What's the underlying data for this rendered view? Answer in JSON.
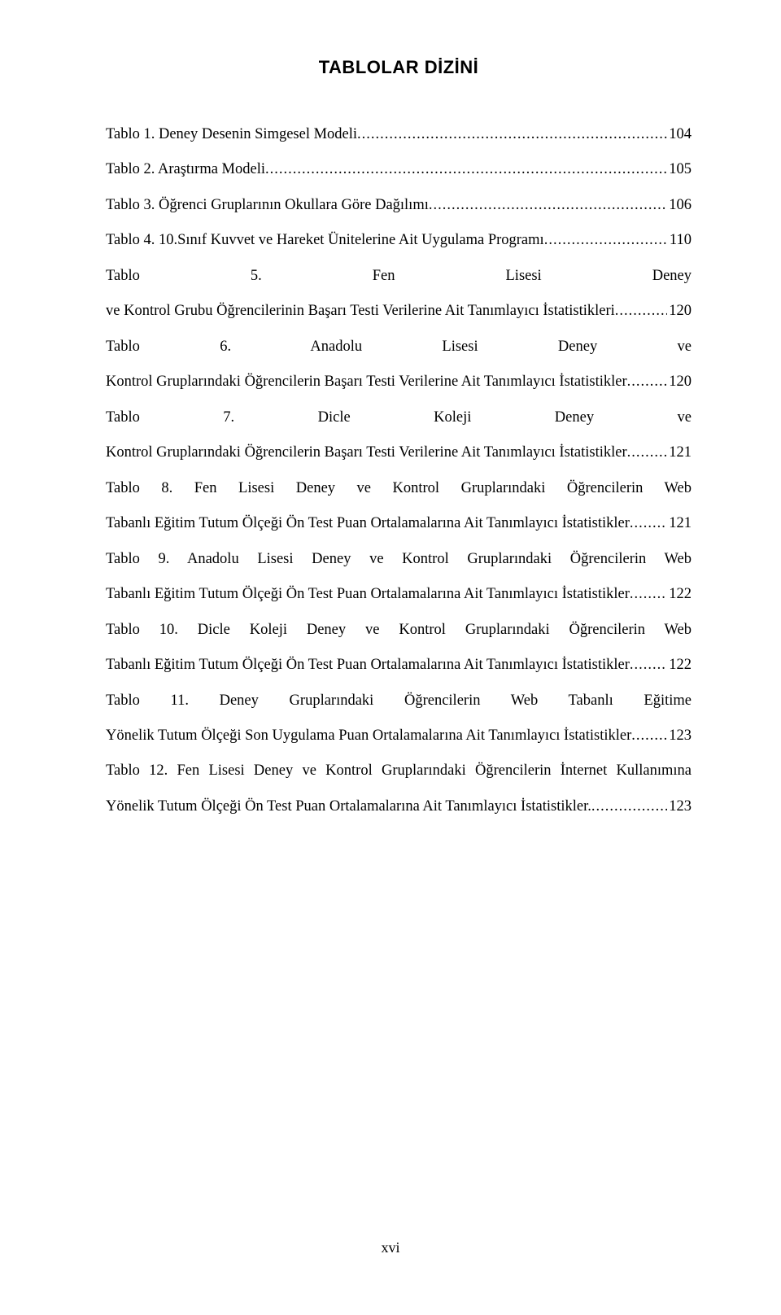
{
  "title": "TABLOLAR DİZİNİ",
  "title_fontsize": 22,
  "title_font_family": "Arial",
  "body_font_family": "Times New Roman",
  "body_fontsize": 18.5,
  "line_height": 2.35,
  "text_color": "#000000",
  "background_color": "#ffffff",
  "entries": [
    {
      "text": "Tablo 1. Deney Desenin Simgesel Modeli",
      "page": "104"
    },
    {
      "text": "Tablo 2. Araştırma Modeli",
      "page": "105"
    },
    {
      "text": "Tablo 3. Öğrenci Gruplarının Okullara Göre Dağılımı",
      "page": "106"
    },
    {
      "text": "Tablo 4. 10.Sınıf Kuvvet ve Hareket Ünitelerine Ait Uygulama Programı",
      "page": "110"
    },
    {
      "text": "Tablo 5. Fen Lisesi Deney ve Kontrol Grubu Öğrencilerinin Başarı Testi Verilerine Ait Tanımlayıcı İstatistikleri",
      "page": "120"
    },
    {
      "text": "Tablo 6. Anadolu Lisesi Deney ve Kontrol Gruplarındaki Öğrencilerin Başarı Testi Verilerine Ait Tanımlayıcı İstatistikler",
      "page": "120"
    },
    {
      "text": "Tablo 7. Dicle Koleji Deney ve Kontrol Gruplarındaki Öğrencilerin Başarı Testi Verilerine Ait Tanımlayıcı İstatistikler",
      "page": "121"
    },
    {
      "text": "Tablo 8. Fen Lisesi Deney ve Kontrol Gruplarındaki Öğrencilerin Web Tabanlı Eğitim Tutum Ölçeği Ön Test Puan Ortalamalarına Ait Tanımlayıcı İstatistikler",
      "page": "121"
    },
    {
      "text": "Tablo 9. Anadolu Lisesi Deney ve Kontrol Gruplarındaki Öğrencilerin Web Tabanlı Eğitim Tutum Ölçeği Ön Test Puan Ortalamalarına Ait Tanımlayıcı İstatistikler",
      "page": "122"
    },
    {
      "text": "Tablo 10. Dicle Koleji Deney ve Kontrol Gruplarındaki Öğrencilerin Web Tabanlı Eğitim Tutum Ölçeği Ön Test Puan Ortalamalarına Ait Tanımlayıcı İstatistikler",
      "page": "122"
    },
    {
      "text": "Tablo 11. Deney Gruplarındaki Öğrencilerin Web Tabanlı Eğitime Yönelik Tutum Ölçeği Son Uygulama Puan Ortalamalarına Ait Tanımlayıcı İstatistikler",
      "page": "123"
    },
    {
      "text": "Tablo 12. Fen Lisesi Deney ve Kontrol Gruplarındaki Öğrencilerin İnternet Kullanımına Yönelik Tutum Ölçeği Ön Test Puan Ortalamalarına Ait Tanımlayıcı İstatistikler.",
      "page": "123"
    }
  ],
  "page_number": "xvi"
}
